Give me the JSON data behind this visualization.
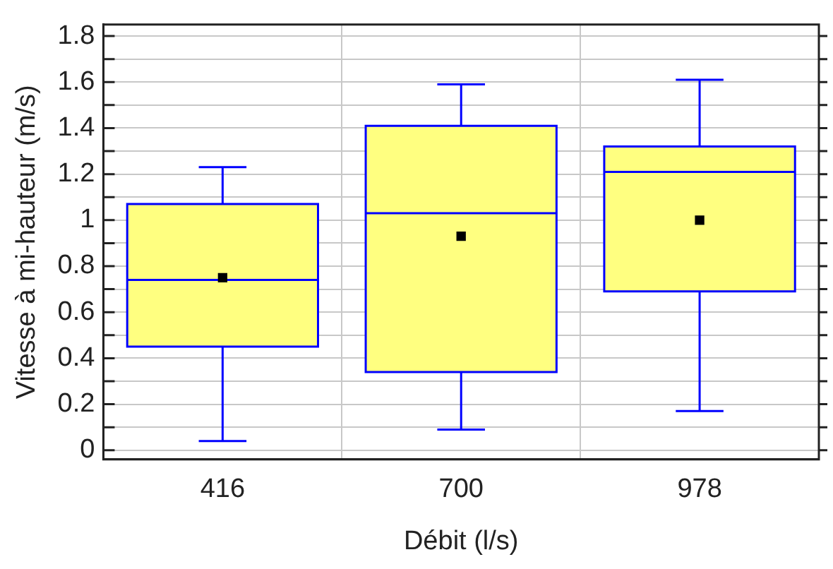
{
  "chart_data": {
    "type": "box",
    "xlabel": "Débit (l/s)",
    "ylabel": "Vitesse à mi-hauteur (m/s)",
    "categories": [
      "416",
      "700",
      "978"
    ],
    "ylim": [
      -0.04,
      1.85
    ],
    "yticks": [
      0,
      {
        "value": 0.1,
        "label": null
      },
      0.2,
      {
        "value": 0.3,
        "label": null
      },
      0.4,
      {
        "value": 0.5,
        "label": null
      },
      0.6,
      {
        "value": 0.7,
        "label": null
      },
      0.8,
      {
        "value": 0.9,
        "label": null
      },
      1,
      {
        "value": 1.1,
        "label": null
      },
      1.2,
      {
        "value": 1.3,
        "label": null
      },
      1.4,
      {
        "value": 1.5,
        "label": null
      },
      1.6,
      {
        "value": 1.7,
        "label": null
      },
      1.8
    ],
    "grid": true,
    "legend": false,
    "marker": "square",
    "series": [
      {
        "color": "#ffff80",
        "boxes": [
          {
            "low": 0.04,
            "q1": 0.45,
            "median": 0.74,
            "q3": 1.07,
            "high": 1.23,
            "mean": 0.75
          },
          {
            "low": 0.09,
            "q1": 0.34,
            "median": 1.03,
            "q3": 1.41,
            "high": 1.59,
            "mean": 0.93
          },
          {
            "low": 0.17,
            "q1": 0.69,
            "median": 1.21,
            "q3": 1.32,
            "high": 1.61,
            "mean": 1.0
          }
        ]
      }
    ]
  }
}
